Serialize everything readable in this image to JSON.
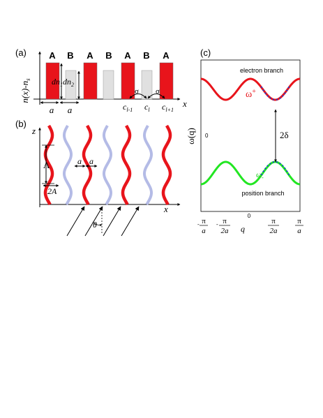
{
  "panel_a": {
    "label": "(a)",
    "ylabel": "n(x)-n",
    "ylabel_sub": "s",
    "xlabel": "x",
    "sites": [
      "A",
      "B",
      "A",
      "B",
      "A",
      "B",
      "A"
    ],
    "dn1": "dn",
    "dn1_sub": "1",
    "dn2": "dn",
    "dn2_sub": "2",
    "a1": "a",
    "a2": "a",
    "sigma1": "σ",
    "sigma2": "σ",
    "c_prev": "c",
    "c_prev_sub": "l-1",
    "c_curr": "c",
    "c_curr_sub": "l",
    "c_next": "c",
    "c_next_sub": "l+1",
    "colors": {
      "A": "#e8141b",
      "B": "#e0e0e0"
    }
  },
  "panel_b": {
    "label": "(b)",
    "zlabel": "z",
    "xlabel": "x",
    "lambda": "Λ",
    "amp_label": "2A",
    "a1": "a",
    "a2": "a",
    "theta": "θ",
    "colors": {
      "red": "#e8141b",
      "blue": "#b4bbe6"
    }
  },
  "panel_c": {
    "label": "(c)",
    "ylabel": "ω(q)",
    "xlabel": "q",
    "zero_y": "0",
    "zero_x": "0",
    "electron": "electron branch",
    "positron": "position branch",
    "omega_plus": "ω",
    "omega_plus_sub": "+",
    "omega_minus": "ω",
    "omega_minus_sub": "-",
    "gap": "2δ",
    "ticks": [
      {
        "sign": "-",
        "num": "π",
        "den": "a"
      },
      {
        "sign": "-",
        "num": "π",
        "den": "2a"
      },
      {
        "sign": "",
        "num": "π",
        "den": "2a"
      },
      {
        "sign": "",
        "num": "π",
        "den": "a"
      }
    ],
    "colors": {
      "upper": "#e8141b",
      "lower": "#22e622",
      "dashed": "#1b3fd6",
      "plus_label": "#e8141b",
      "minus_label": "#22cc22"
    }
  }
}
